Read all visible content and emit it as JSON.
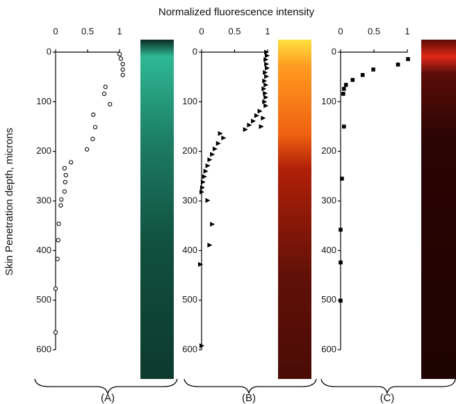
{
  "title": "Normalized fluorescence intensity",
  "y_label": "Skin Penetration depth, microns",
  "chart_data": [
    {
      "type": "scatter",
      "label": "(A)",
      "marker": "circle",
      "color": "#000000",
      "xlim": [
        0,
        1
      ],
      "ylim": [
        0,
        600
      ],
      "y_inverted": true,
      "xticks": [
        0,
        0.5,
        1
      ],
      "yticks": [
        0,
        100,
        200,
        300,
        400,
        500,
        600
      ],
      "x": [
        1,
        1.02,
        1.05,
        1.05,
        1.05,
        0.78,
        0.76,
        0.85,
        0.59,
        0.62,
        0.58,
        0.49,
        0.24,
        0.14,
        0.16,
        0.15,
        0.14,
        0.09,
        0.08,
        0.05,
        0.04,
        0.03,
        0,
        0
      ],
      "y": [
        4,
        13,
        24,
        35,
        46,
        70,
        84,
        105,
        126,
        151,
        175,
        196,
        222,
        234,
        248,
        262,
        281,
        297,
        309,
        346,
        379,
        417,
        477,
        565
      ]
    },
    {
      "type": "scatter",
      "label": "(B)",
      "marker": "triangle",
      "color": "#000000",
      "xlim": [
        0,
        1
      ],
      "ylim": [
        0,
        600
      ],
      "y_inverted": true,
      "xticks": [
        0,
        0.5,
        1
      ],
      "yticks": [
        0,
        100,
        200,
        300,
        400,
        500,
        600
      ],
      "x": [
        0.98,
        0.99,
        0.97,
        0.98,
        0.99,
        0.96,
        0.98,
        0.95,
        0.97,
        0.94,
        0.96,
        0.97,
        0.95,
        0.97,
        0.88,
        0.83,
        0.93,
        0.78,
        0.72,
        0.9,
        0.66,
        0.28,
        0.33,
        0.25,
        0.2,
        0.16,
        0.12,
        0.09,
        0.06,
        0.04,
        0.02,
        0.01,
        0,
        0.09,
        0.16,
        0.12,
        -0.02,
        0
      ],
      "y": [
        0,
        7,
        15,
        24,
        32,
        41,
        49,
        58,
        66,
        74,
        83,
        91,
        100,
        108,
        119,
        128,
        133,
        139,
        147,
        150,
        156,
        164,
        173,
        184,
        195,
        206,
        217,
        229,
        240,
        251,
        262,
        273,
        282,
        299,
        347,
        389,
        428,
        592
      ]
    },
    {
      "type": "scatter",
      "label": "(C)",
      "marker": "square",
      "color": "#000000",
      "xlim": [
        0,
        1
      ],
      "ylim": [
        0,
        600
      ],
      "y_inverted": true,
      "xticks": [
        0,
        0.5,
        1
      ],
      "yticks": [
        0,
        100,
        200,
        300,
        400,
        500,
        600
      ],
      "x": [
        1.01,
        0.86,
        0.49,
        0.33,
        0.18,
        0.08,
        0.05,
        0.04,
        0.05,
        0.02,
        0,
        0,
        0
      ],
      "y": [
        14,
        25,
        35,
        46,
        56,
        66,
        74,
        84,
        150,
        255,
        358,
        424,
        501
      ]
    }
  ]
}
